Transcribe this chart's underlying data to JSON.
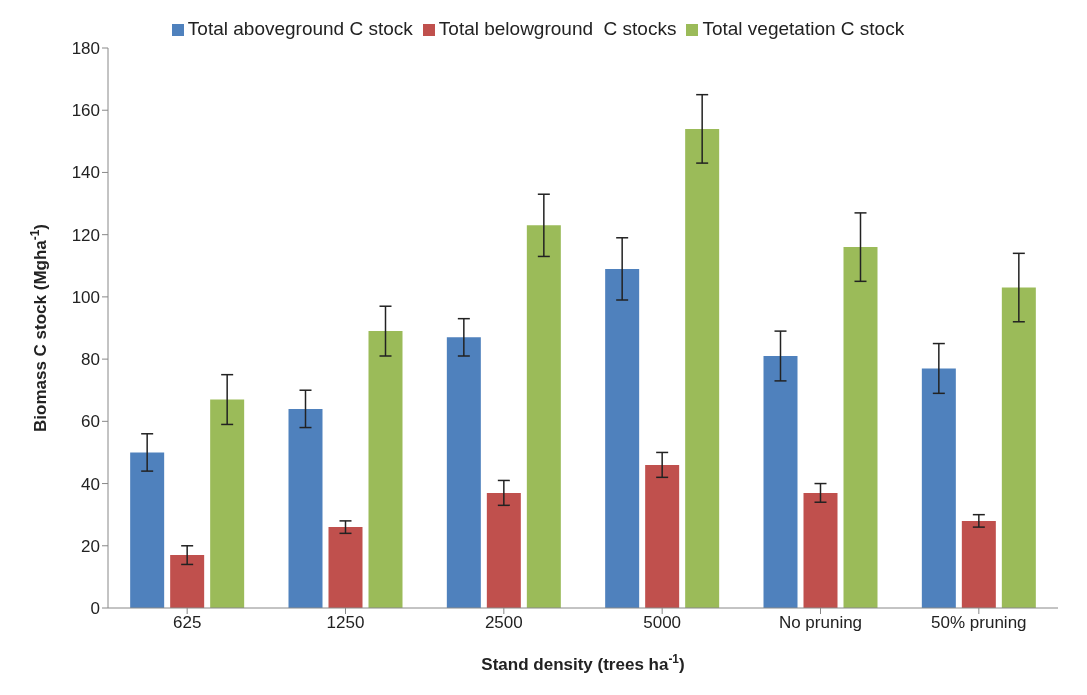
{
  "chart_data": {
    "type": "bar",
    "xlabel": "Stand density (trees ha$^{-1}$)",
    "ylabel": "Biomass C stock (Mgha$^{-1}$)",
    "categories": [
      "625",
      "1250",
      "2500",
      "5000",
      "No pruning",
      "50% pruning"
    ],
    "series": [
      {
        "name": "Total aboveground C stock",
        "color": "#4f81bd",
        "values": [
          50,
          64,
          87,
          109,
          81,
          77
        ],
        "errors": [
          6,
          6,
          6,
          10,
          8,
          8
        ]
      },
      {
        "name": "Total belowground  C stocks",
        "color": "#c0504d",
        "values": [
          17,
          26,
          37,
          46,
          37,
          28
        ],
        "errors": [
          3,
          2,
          4,
          4,
          3,
          2
        ]
      },
      {
        "name": "Total vegetation C stock",
        "color": "#9bbb59",
        "values": [
          67,
          89,
          123,
          154,
          116,
          103
        ],
        "errors": [
          8,
          8,
          10,
          11,
          11,
          11
        ]
      }
    ],
    "ylim": [
      0,
      180
    ],
    "yticks": [
      0,
      20,
      40,
      60,
      80,
      100,
      120,
      140,
      160,
      180
    ],
    "legend": "top"
  }
}
